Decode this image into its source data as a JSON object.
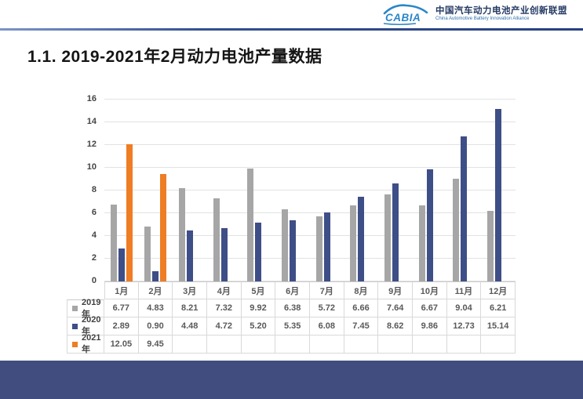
{
  "header": {
    "logo_text": "CABIA",
    "org_name_cn": "中国汽车动力电池产业创新联盟",
    "org_name_en": "China Automotive Battery Innovation Alliance"
  },
  "title": "1.1.  2019-2021年2月动力电池产量数据",
  "chart_data": {
    "type": "bar",
    "title": "2019-2021年2月动力电池产量数据",
    "categories": [
      "1月",
      "2月",
      "3月",
      "4月",
      "5月",
      "6月",
      "7月",
      "8月",
      "9月",
      "10月",
      "11月",
      "12月"
    ],
    "series": [
      {
        "name": "2019年",
        "color": "#a6a6a6",
        "values": [
          6.77,
          4.83,
          8.21,
          7.32,
          9.92,
          6.38,
          5.72,
          6.66,
          7.64,
          6.67,
          9.04,
          6.21
        ]
      },
      {
        "name": "2020年",
        "color": "#3e4e87",
        "values": [
          2.89,
          0.9,
          4.48,
          4.72,
          5.2,
          5.35,
          6.08,
          7.45,
          8.62,
          9.86,
          12.73,
          15.14
        ]
      },
      {
        "name": "2021年",
        "color": "#ee7d23",
        "values": [
          12.05,
          9.45,
          null,
          null,
          null,
          null,
          null,
          null,
          null,
          null,
          null,
          null
        ]
      }
    ],
    "ylim": [
      0,
      16
    ],
    "ytick_step": 2,
    "grid": true,
    "legend_position": "data-table-left",
    "xlabel": "",
    "ylabel": ""
  },
  "colors": {
    "series_2019": "#a6a6a6",
    "series_2020": "#3e4e87",
    "series_2021": "#ee7d23",
    "footer_band": "#414d7e",
    "header_line": "#33508f",
    "logo_blue": "#2b86c8"
  }
}
